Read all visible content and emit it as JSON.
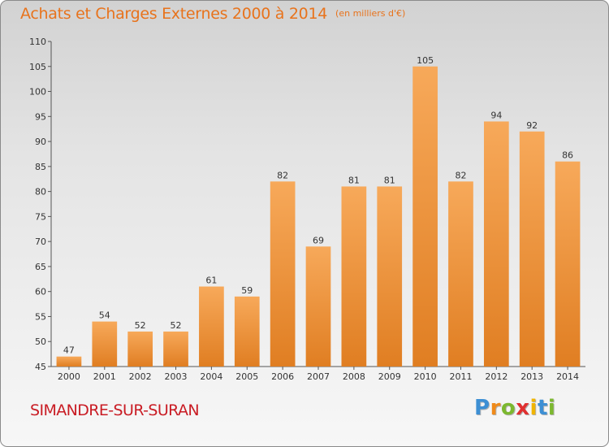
{
  "chart_data": {
    "type": "bar",
    "title": "Achats et Charges Externes 2000 à 2014",
    "unit_note": "(en milliers d'€)",
    "categories": [
      "2000",
      "2001",
      "2002",
      "2003",
      "2004",
      "2005",
      "2006",
      "2007",
      "2008",
      "2009",
      "2010",
      "2011",
      "2012",
      "2013",
      "2014"
    ],
    "values": [
      47,
      54,
      52,
      52,
      61,
      59,
      82,
      69,
      81,
      81,
      105,
      82,
      94,
      92,
      86
    ],
    "ylim": [
      45,
      110
    ],
    "yticks": [
      45,
      50,
      55,
      60,
      65,
      70,
      75,
      80,
      85,
      90,
      95,
      100,
      105,
      110
    ],
    "xlabel": "",
    "ylabel": "",
    "grid": false,
    "colors": {
      "bar_top": "#f7a95a",
      "bar_bottom": "#e07e22",
      "text": "#333333",
      "axis": "#555555"
    }
  },
  "footer": {
    "commune": "SIMANDRE-SUR-SURAN",
    "logo_letters": [
      "P",
      "r",
      "o",
      "x",
      "i",
      "t",
      "i"
    ],
    "logo_colors": [
      "#3d8fd4",
      "#f08a1a",
      "#7cb82f",
      "#e03030",
      "#f0b400",
      "#3d8fd4",
      "#7cb82f"
    ]
  }
}
